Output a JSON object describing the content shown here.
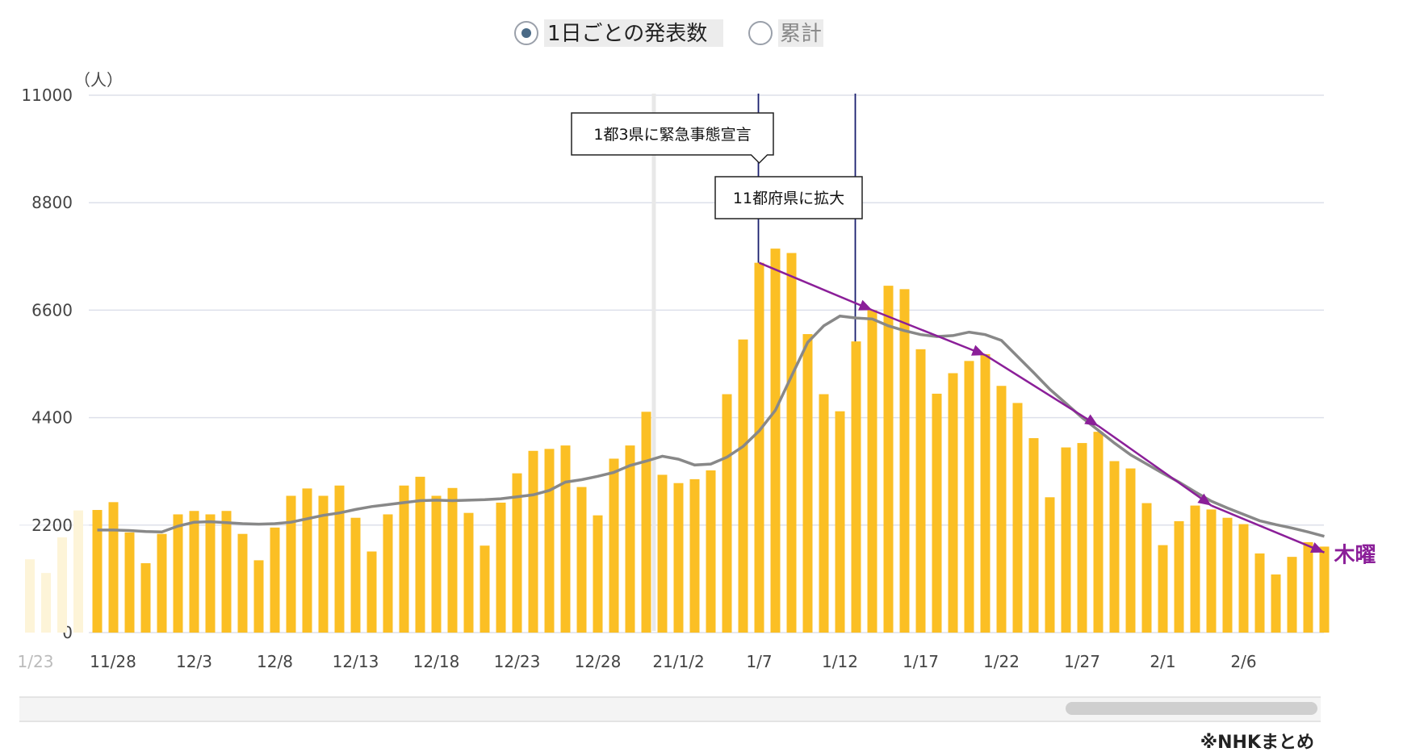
{
  "legend": {
    "options": [
      {
        "label": "1日ごとの発表数",
        "selected": true
      },
      {
        "label": "累計",
        "selected": false
      }
    ]
  },
  "units_label": "（人）",
  "source": "※NHKまとめ",
  "trend_label": "木曜",
  "colors": {
    "bar": "#fbbf24",
    "bar_faded": "#fdf4d8",
    "average_line": "#888888",
    "trend_arrow": "#8b1f99",
    "event_line": "#1a1f6e",
    "grid": "#dde0ea"
  },
  "chart_data": {
    "type": "bar",
    "ylim": [
      0,
      11000
    ],
    "yticks": [
      0,
      2200,
      4400,
      6600,
      8800,
      11000
    ],
    "xtick_labels": [
      "1/23",
      "11/28",
      "12/3",
      "12/8",
      "12/13",
      "12/18",
      "12/23",
      "12/28",
      "21/1/2",
      "1/7",
      "1/12",
      "1/17",
      "1/22",
      "1/27",
      "2/1",
      "2/6"
    ],
    "faded_values": [
      1500,
      1220,
      1950,
      2500
    ],
    "dates": [
      "11/27",
      "11/28",
      "11/29",
      "11/30",
      "12/1",
      "12/2",
      "12/3",
      "12/4",
      "12/5",
      "12/6",
      "12/7",
      "12/8",
      "12/9",
      "12/10",
      "12/11",
      "12/12",
      "12/13",
      "12/14",
      "12/15",
      "12/16",
      "12/17",
      "12/18",
      "12/19",
      "12/20",
      "12/21",
      "12/22",
      "12/23",
      "12/24",
      "12/25",
      "12/26",
      "12/27",
      "12/28",
      "12/29",
      "12/30",
      "12/31",
      "1/1",
      "1/2",
      "1/3",
      "1/4",
      "1/5",
      "1/6",
      "1/7",
      "1/8",
      "1/9",
      "1/10",
      "1/11",
      "1/12",
      "1/13",
      "1/14",
      "1/15",
      "1/16",
      "1/17",
      "1/18",
      "1/19",
      "1/20",
      "1/21",
      "1/22",
      "1/23",
      "1/24",
      "1/25",
      "1/26",
      "1/27",
      "1/28",
      "1/29",
      "1/30",
      "1/31",
      "2/1",
      "2/2",
      "2/3",
      "2/4",
      "2/5",
      "2/6",
      "2/7",
      "2/8",
      "2/9",
      "2/10",
      "2/11"
    ],
    "series": [
      {
        "kind": "bar",
        "values": [
          2510,
          2670,
          2050,
          1420,
          2020,
          2420,
          2490,
          2420,
          2490,
          2020,
          1480,
          2150,
          2800,
          2950,
          2800,
          3010,
          2350,
          1660,
          2420,
          3010,
          3190,
          2800,
          2960,
          2450,
          1780,
          2660,
          3260,
          3720,
          3760,
          3830,
          2980,
          2400,
          3560,
          3830,
          4520,
          3230,
          3060,
          3140,
          3320,
          4880,
          6000,
          7570,
          7860,
          7770,
          6110,
          4880,
          4530,
          5960,
          6600,
          7100,
          7030,
          5800,
          4890,
          5310,
          5560,
          5700,
          5050,
          4700,
          3980,
          2770,
          3790,
          3880,
          4110,
          3510,
          3360,
          2650,
          1790,
          2280,
          2600,
          2520,
          2350,
          2220,
          1620,
          1190,
          1550,
          1850,
          1760
        ]
      },
      {
        "kind": "line",
        "values": [
          2100,
          2100,
          2090,
          2070,
          2060,
          2180,
          2260,
          2270,
          2250,
          2230,
          2220,
          2230,
          2260,
          2330,
          2400,
          2450,
          2520,
          2580,
          2620,
          2660,
          2700,
          2710,
          2700,
          2710,
          2720,
          2740,
          2780,
          2820,
          2910,
          3080,
          3130,
          3200,
          3280,
          3420,
          3510,
          3610,
          3550,
          3430,
          3450,
          3590,
          3810,
          4130,
          4550,
          5250,
          5940,
          6280,
          6480,
          6440,
          6420,
          6280,
          6180,
          6100,
          6060,
          6080,
          6150,
          6100,
          5980,
          5650,
          5320,
          4980,
          4690,
          4400,
          4140,
          3880,
          3640,
          3450,
          3260,
          3080,
          2880,
          2690,
          2550,
          2420,
          2290,
          2210,
          2140,
          2060,
          1970
        ]
      },
      {
        "kind": "trend",
        "points": [
          [
            "1/7",
            7570
          ],
          [
            "1/14",
            6600
          ],
          [
            "1/21",
            5680
          ],
          [
            "1/28",
            4230
          ],
          [
            "2/4",
            2600
          ],
          [
            "2/11",
            1640
          ]
        ]
      }
    ],
    "events": [
      {
        "date": "1/7",
        "label": "1都3県に緊急事態宣言"
      },
      {
        "date": "1/13",
        "label": "11都府県に拡大"
      }
    ]
  }
}
